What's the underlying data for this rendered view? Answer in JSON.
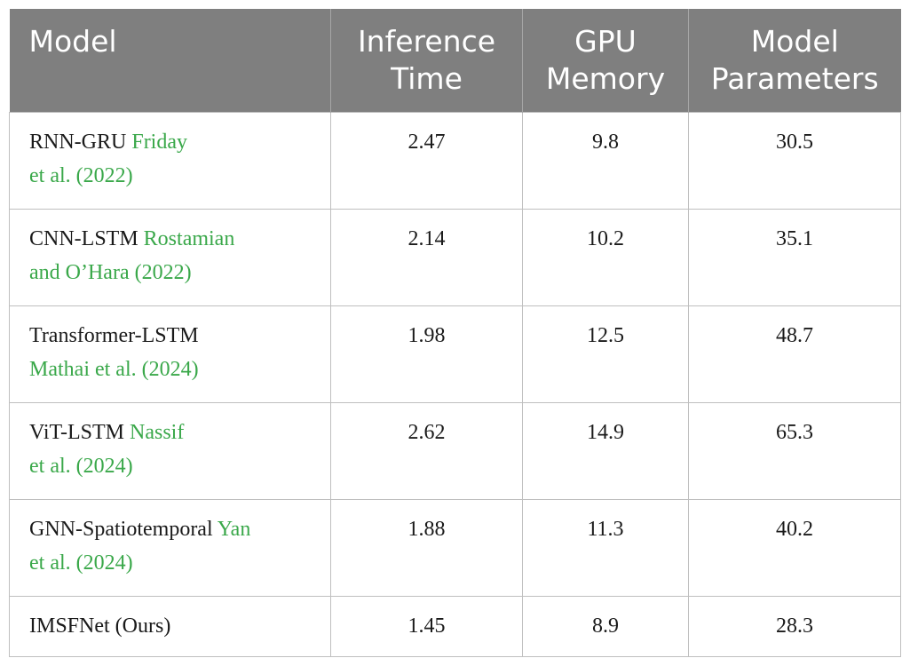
{
  "columns": {
    "model": [
      "Model"
    ],
    "inference_time": [
      "Inference",
      "Time"
    ],
    "gpu_memory": [
      "GPU",
      "Memory"
    ],
    "model_parameters": [
      "Model",
      "Parameters"
    ]
  },
  "rows": [
    {
      "name": "RNN-GRU",
      "cite_line1": "Friday",
      "line2": "et al. (2022)",
      "inference_time": "2.47",
      "gpu_memory": "9.8",
      "parameters": "30.5"
    },
    {
      "name": "CNN-LSTM",
      "cite_line1": "Rostamian",
      "line2": "and O’Hara (2022)",
      "inference_time": "2.14",
      "gpu_memory": "10.2",
      "parameters": "35.1"
    },
    {
      "name": "Transformer-LSTM",
      "cite_line1": "",
      "line2": "Mathai et al. (2024)",
      "inference_time": "1.98",
      "gpu_memory": "12.5",
      "parameters": "48.7"
    },
    {
      "name": "ViT-LSTM",
      "cite_line1": "Nassif",
      "line2": "et al. (2024)",
      "inference_time": "2.62",
      "gpu_memory": "14.9",
      "parameters": "65.3"
    },
    {
      "name": "GNN-Spatiotemporal",
      "cite_line1": "Yan",
      "line2": "et al. (2024)",
      "inference_time": "1.88",
      "gpu_memory": "11.3",
      "parameters": "40.2"
    },
    {
      "name": "IMSFNet (Ours)",
      "cite_line1": "",
      "line2": "",
      "inference_time": "1.45",
      "gpu_memory": "8.9",
      "parameters": "28.3"
    }
  ],
  "colors": {
    "header_bg": "#7f7f7f",
    "header_text": "#ffffff",
    "citation": "#3aa84a",
    "grid": "#bfbfbf"
  }
}
